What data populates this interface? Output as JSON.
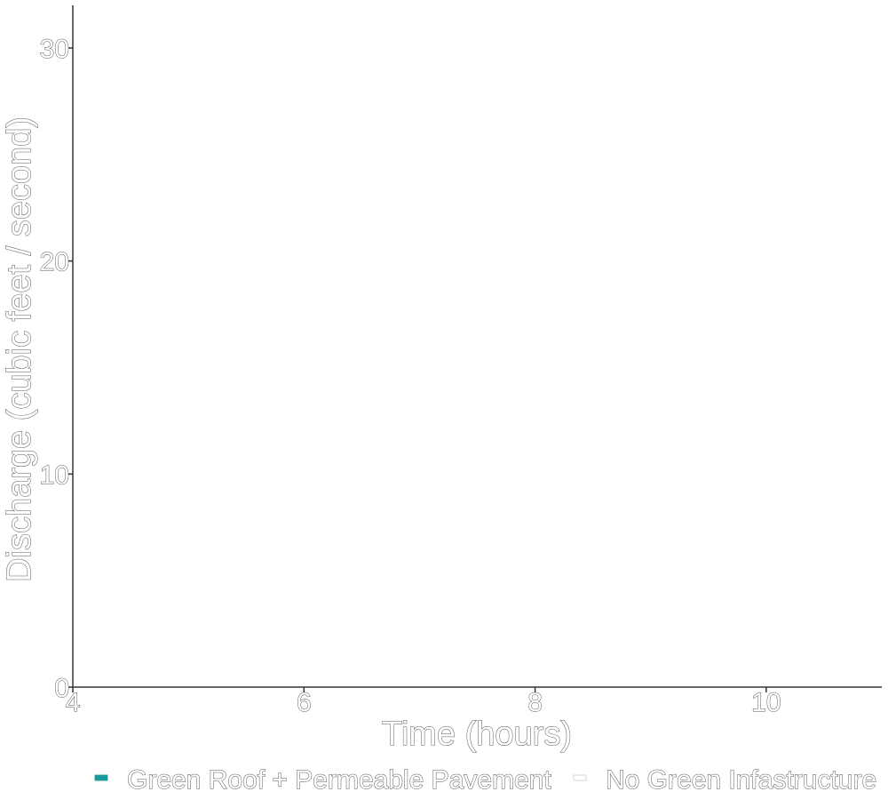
{
  "chart_data": {
    "type": "line",
    "title": "",
    "xlabel": "Time (hours)",
    "ylabel": "Discharge (cubic feet / second)",
    "xlim": [
      4,
      11
    ],
    "ylim": [
      0,
      32
    ],
    "x_ticks": [
      4,
      6,
      8,
      10
    ],
    "y_ticks": [
      0,
      10,
      20,
      30
    ],
    "grid": false,
    "legend_position": "bottom",
    "series": [
      {
        "name": "Green Roof + Permeable Pavement",
        "color": "#1a9a9a",
        "x": [],
        "y": []
      },
      {
        "name": "No Green Infastructure",
        "color": "#ffffff",
        "x": [],
        "y": []
      }
    ]
  }
}
